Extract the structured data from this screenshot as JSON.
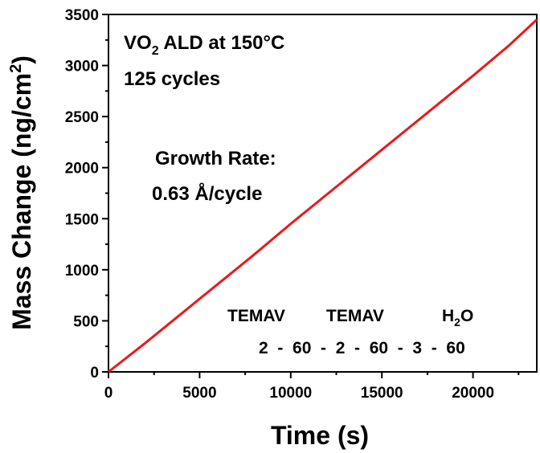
{
  "chart_data": {
    "type": "line",
    "title": "",
    "xlabel": "Time (s)",
    "ylabel": {
      "main": "Mass Change (ng/cm",
      "sup": "2",
      "end": ")"
    },
    "xlim": [
      0,
      23500
    ],
    "ylim": [
      0,
      3500
    ],
    "xticks": [
      0,
      5000,
      10000,
      15000,
      20000
    ],
    "xtick_labels": [
      "0",
      "5000",
      "10000",
      "15000",
      "20000"
    ],
    "yticks": [
      0,
      500,
      1000,
      1500,
      2000,
      2500,
      3000,
      3500
    ],
    "ytick_labels": [
      "0",
      "500",
      "1000",
      "1500",
      "2000",
      "2500",
      "3000",
      "3500"
    ],
    "grid": false,
    "legend": "none",
    "series": [
      {
        "color": "#e8191c",
        "x": [
          0,
          2000,
          4000,
          6000,
          8000,
          10000,
          12000,
          14000,
          16000,
          18000,
          20000,
          22000,
          23500
        ],
        "y": [
          0,
          280,
          570,
          860,
          1150,
          1450,
          1740,
          2030,
          2320,
          2610,
          2900,
          3200,
          3450
        ]
      }
    ],
    "annotations": {
      "line1": {
        "a": "VO",
        "sub": "2",
        "b": " ALD at 150°C"
      },
      "line2": "125 cycles",
      "growth_label": "Growth Rate:",
      "growth_value": "0.63 Å/cycle",
      "pulse_names": {
        "temav1": "TEMAV",
        "temav2": "TEMAV",
        "water": {
          "a": "H",
          "sub": "2",
          "b": "O"
        }
      },
      "pulse_sequence": "2  -  60  -  2  -  60  -  3  -  60"
    }
  }
}
